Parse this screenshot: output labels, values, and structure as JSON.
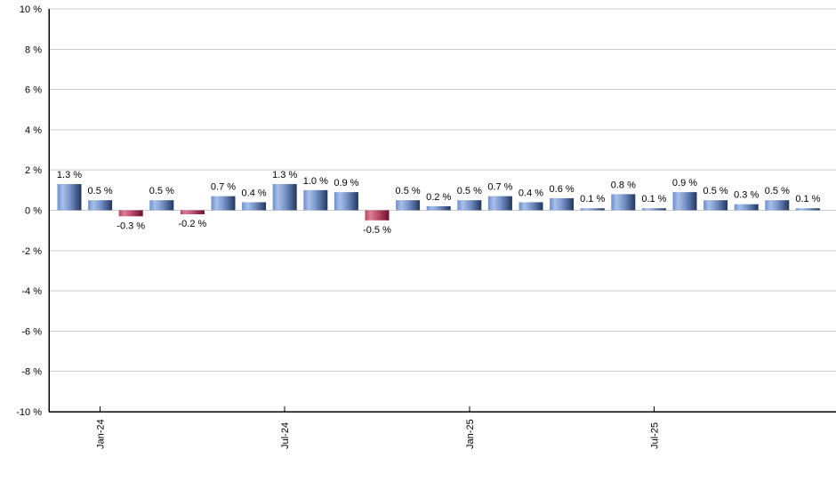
{
  "chart_data": {
    "type": "bar",
    "title": "",
    "xlabel": "",
    "ylabel": "",
    "unit": "%",
    "ylim": [
      -10,
      10
    ],
    "grid": true,
    "legend": "none",
    "y_ticks": [
      10,
      8,
      6,
      4,
      2,
      0,
      -2,
      -4,
      -6,
      -8,
      -10
    ],
    "y_tick_labels": [
      "10 %",
      "8 %",
      "6 %",
      "4 %",
      "2 %",
      "0 %",
      "-2 %",
      "-4 %",
      "-6 %",
      "-8 %",
      "-10 %"
    ],
    "values": [
      1.3,
      0.5,
      -0.3,
      0.5,
      -0.2,
      0.7,
      0.4,
      1.3,
      1.0,
      0.9,
      -0.5,
      0.5,
      0.2,
      0.5,
      0.7,
      0.4,
      0.6,
      0.1,
      0.8,
      0.1,
      0.9,
      0.5,
      0.3,
      0.5,
      0.1
    ],
    "bar_labels": [
      "1.3 %",
      "0.5 %",
      "-0.3 %",
      "0.5 %",
      "-0.2 %",
      "0.7 %",
      "0.4 %",
      "1.3 %",
      "1.0 %",
      "0.9 %",
      "-0.5 %",
      "0.5 %",
      "0.2 %",
      "0.5 %",
      "0.7 %",
      "0.4 %",
      "0.6 %",
      "0.1 %",
      "0.8 %",
      "0.1 %",
      "0.9 %",
      "0.5 %",
      "0.3 %",
      "0.5 %",
      "0.1 %"
    ],
    "x_ticks": [
      {
        "bar_index": 1,
        "label": "Jan-24"
      },
      {
        "bar_index": 7,
        "label": "Jul-24"
      },
      {
        "bar_index": 13,
        "label": "Jan-25"
      },
      {
        "bar_index": 19,
        "label": "Jul-25"
      }
    ],
    "colors": {
      "positive_bar_gradient": [
        "#6A8FD0",
        "#A9BFE6",
        "#7A97CE",
        "#21375F"
      ],
      "negative_bar_gradient": [
        "#B8435F",
        "#D87E95",
        "#C05070",
        "#6E0E2C"
      ],
      "gridline": "#CCCCCC",
      "axis": "#000000",
      "text": "#000000",
      "background": "#FFFFFF"
    }
  }
}
